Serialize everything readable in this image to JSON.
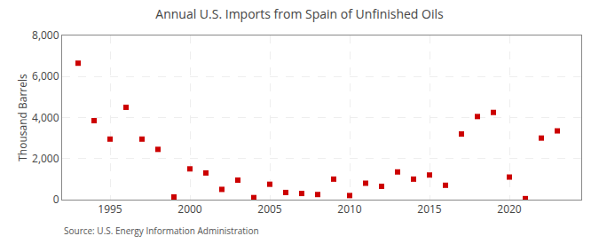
{
  "chart_data": {
    "type": "scatter",
    "title": "Annual U.S. Imports from Spain of Unfinished Oils",
    "ylabel": "Thousand Barrels",
    "annotations": [
      "Source: U.S. Energy Information Administration"
    ],
    "x": [
      1993,
      1994,
      1995,
      1996,
      1997,
      1998,
      1999,
      2000,
      2001,
      2002,
      2003,
      2004,
      2005,
      2006,
      2007,
      2008,
      2009,
      2010,
      2011,
      2012,
      2013,
      2014,
      2015,
      2016,
      2017,
      2018,
      2019,
      2020,
      2021,
      2022,
      2023
    ],
    "values": [
      6650,
      3850,
      2950,
      4500,
      2950,
      2450,
      130,
      1500,
      1300,
      500,
      950,
      100,
      750,
      350,
      300,
      250,
      1000,
      200,
      800,
      650,
      1350,
      1000,
      1200,
      700,
      3200,
      4050,
      4250,
      1100,
      50,
      3000,
      3350
    ],
    "color": "#cc0000",
    "marker": "square",
    "xlim": [
      1992,
      2024.5
    ],
    "xticks": [
      1995,
      2000,
      2005,
      2010,
      2015,
      2020
    ],
    "ylim": [
      0,
      8000
    ],
    "yticks": [
      0,
      {
        "value": 2000,
        "label": "2,000"
      },
      {
        "value": 4000,
        "label": "4,000"
      },
      {
        "value": 6000,
        "label": "6,000"
      },
      {
        "value": 8000,
        "label": "8,000"
      }
    ],
    "grid": true
  }
}
